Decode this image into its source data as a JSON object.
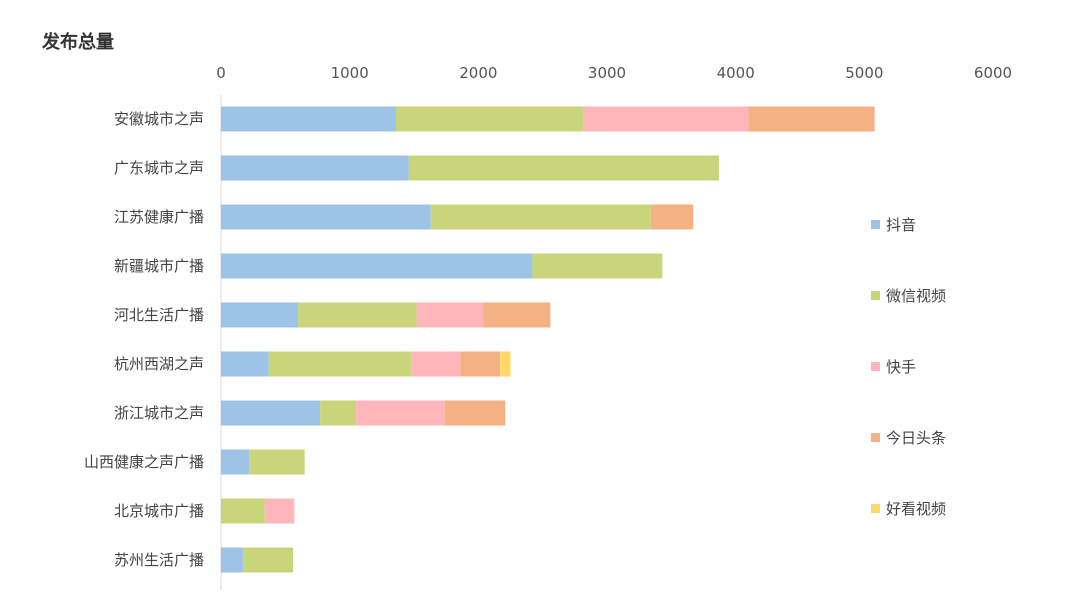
{
  "chart_data": {
    "type": "bar",
    "orientation": "horizontal",
    "stacked": true,
    "title": "发布总量",
    "xlim": [
      0,
      6000
    ],
    "xticks": [
      0,
      1000,
      2000,
      3000,
      4000,
      5000,
      6000
    ],
    "grid": false,
    "legend_placement": "right",
    "categories": [
      "安徽城市之声",
      "广东城市之声",
      "江苏健康广播",
      "新疆城市广播",
      "河北生活广播",
      "杭州西湖之声",
      "浙江城市之声",
      "山西健康之声广播",
      "北京城市广播",
      "苏州生活广播"
    ],
    "series": [
      {
        "name": "抖音",
        "color": "#9DC3E6",
        "values": [
          1360,
          1460,
          1630,
          2420,
          600,
          370,
          770,
          220,
          0,
          170
        ]
      },
      {
        "name": "微信视频",
        "color": "#C9D57A",
        "values": [
          1460,
          2410,
          1710,
          1010,
          920,
          1110,
          280,
          430,
          340,
          390
        ]
      },
      {
        "name": "快手",
        "color": "#FFB6BA",
        "values": [
          1280,
          0,
          0,
          0,
          520,
          380,
          690,
          0,
          230,
          0
        ]
      },
      {
        "name": "今日头条",
        "color": "#F4B183",
        "values": [
          980,
          0,
          330,
          0,
          520,
          310,
          470,
          0,
          0,
          0
        ]
      },
      {
        "name": "好看视频",
        "color": "#FFD966",
        "values": [
          0,
          0,
          0,
          0,
          0,
          80,
          0,
          0,
          0,
          0
        ]
      }
    ]
  }
}
